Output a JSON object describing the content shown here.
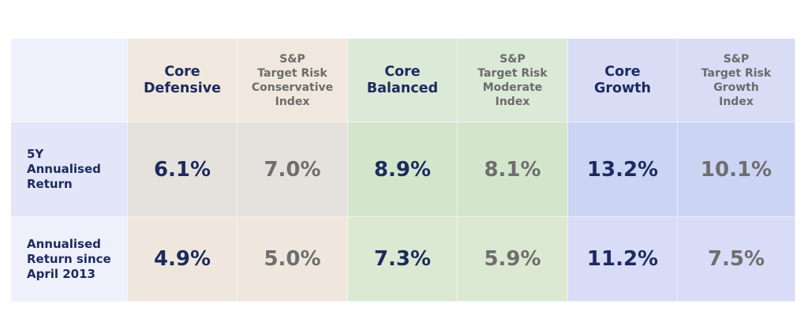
{
  "colors": {
    "label_header_bg": "#eef0fb",
    "label_row_bg": "#e3e6f8",
    "defensive_header_bg": "#f0e8de",
    "defensive_row_bg": "#e5e1dd",
    "defensive_row2_bg": "#efe7dd",
    "balanced_header_bg": "#dbe9d7",
    "balanced_row_bg": "#d3e6cc",
    "balanced_row2_bg": "#dbe9d3",
    "growth_header_bg": "#d8ddf5",
    "growth_row_bg": "#ccd4f4",
    "growth_row2_bg": "#d8dcf6",
    "fund_text": "#1c2b5e",
    "index_text": "#6e6e6e"
  },
  "header": {
    "corner": "",
    "core_defensive": "Core\nDefensive",
    "sp_conservative": "S&P\nTarget Risk\nConservative\nIndex",
    "core_balanced": "Core\nBalanced",
    "sp_moderate": "S&P\nTarget Risk\nModerate\nIndex",
    "core_growth": "Core\nGrowth",
    "sp_growth": "S&P\nTarget Risk\nGrowth\nIndex"
  },
  "rows": [
    {
      "label": "5Y\nAnnualised\nReturn",
      "core_defensive": "6.1%",
      "sp_conservative": "7.0%",
      "core_balanced": "8.9%",
      "sp_moderate": "8.1%",
      "core_growth": "13.2%",
      "sp_growth": "10.1%"
    },
    {
      "label": "Annualised\nReturn since\nApril 2013",
      "core_defensive": "4.9%",
      "sp_conservative": "5.0%",
      "core_balanced": "7.3%",
      "sp_moderate": "5.9%",
      "core_growth": "11.2%",
      "sp_growth": "7.5%"
    }
  ]
}
